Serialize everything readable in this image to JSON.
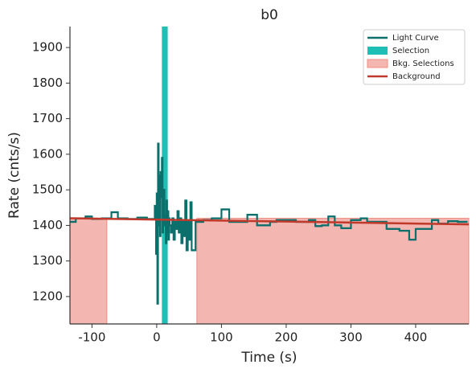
{
  "chart_data": {
    "type": "line",
    "title": "b0",
    "xlabel": "Time (s)",
    "ylabel": "Rate (cnts/s)",
    "xlim": [
      -134,
      482
    ],
    "ylim": [
      1123,
      1959
    ],
    "xticks": [
      -100,
      0,
      100,
      200,
      300,
      400
    ],
    "yticks": [
      1200,
      1300,
      1400,
      1500,
      1600,
      1700,
      1800,
      1900
    ],
    "legend": "upper right",
    "series": [
      {
        "name": "Light Curve",
        "kind": "step",
        "color": "#0b706c",
        "x": [
          -134,
          -125,
          -110,
          -100,
          -85,
          -70,
          -60,
          -45,
          -30,
          -15,
          -3,
          -1,
          0,
          1,
          2,
          3,
          4,
          5,
          6,
          7,
          8,
          9,
          10,
          11,
          12,
          13,
          14,
          15,
          16,
          17,
          18,
          19,
          20,
          22,
          24,
          26,
          28,
          30,
          32,
          34,
          36,
          38,
          40,
          42,
          44,
          46,
          48,
          50,
          52,
          54,
          60,
          72,
          85,
          100,
          112,
          140,
          155,
          175,
          185,
          215,
          235,
          245,
          255,
          265,
          275,
          285,
          300,
          315,
          325,
          345,
          355,
          375,
          390,
          400,
          425,
          435,
          450,
          465,
          480
        ],
        "values": [
          1410,
          1420,
          1425,
          1418,
          1420,
          1437,
          1420,
          1418,
          1422,
          1418,
          1455,
          1320,
          1490,
          1180,
          1630,
          1400,
          1540,
          1370,
          1550,
          1480,
          1590,
          1380,
          1460,
          1500,
          1400,
          1430,
          1350,
          1470,
          1380,
          1440,
          1360,
          1420,
          1400,
          1380,
          1420,
          1360,
          1410,
          1390,
          1440,
          1380,
          1420,
          1350,
          1410,
          1370,
          1470,
          1330,
          1410,
          1360,
          1465,
          1330,
          1410,
          1415,
          1420,
          1445,
          1410,
          1430,
          1400,
          1410,
          1415,
          1410,
          1415,
          1398,
          1400,
          1425,
          1400,
          1392,
          1415,
          1420,
          1410,
          1410,
          1390,
          1385,
          1360,
          1390,
          1415,
          1405,
          1412,
          1410,
          1410
        ]
      },
      {
        "name": "Selection",
        "kind": "span",
        "color": "#1fbfb6",
        "spans": [
          [
            8,
            17
          ]
        ]
      },
      {
        "name": "Bkg. Selections",
        "kind": "span",
        "color": "#f4b6b0",
        "edge": "#ef8d82",
        "spans": [
          [
            -134,
            -77
          ],
          [
            62,
            482
          ]
        ]
      },
      {
        "name": "Background",
        "kind": "line",
        "color": "#c0392b",
        "x": [
          -134,
          482
        ],
        "values": [
          1420,
          1403
        ]
      }
    ]
  }
}
